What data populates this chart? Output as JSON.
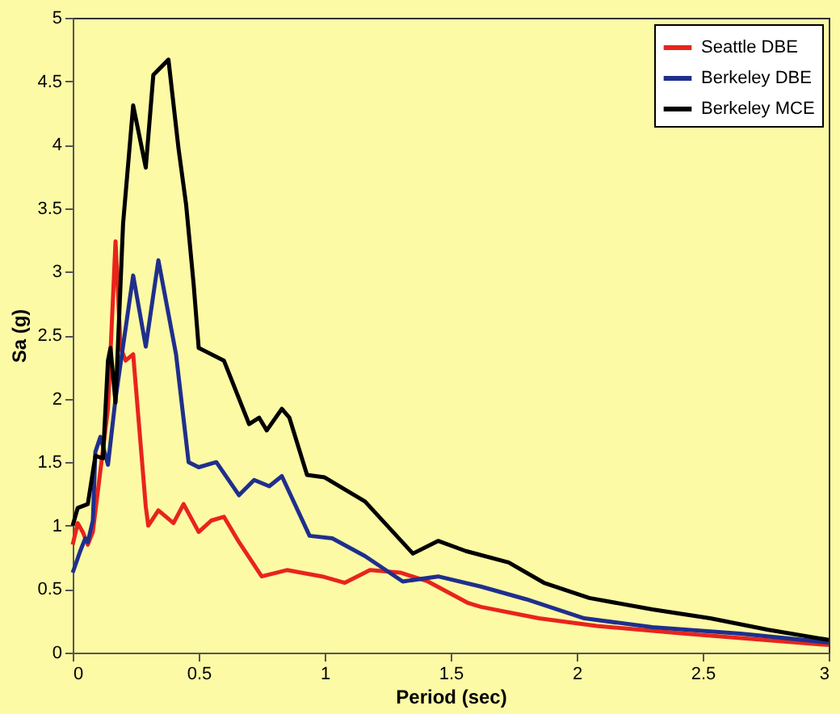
{
  "chart_data": {
    "type": "line",
    "xlabel": "Period (sec)",
    "ylabel": "Sa (g)",
    "xlim": [
      0,
      3
    ],
    "xticks": [
      0,
      0.5,
      1,
      1.5,
      2,
      2.5,
      3
    ],
    "ylim": [
      0,
      5
    ],
    "yticks": [
      0,
      0.5,
      1,
      1.5,
      2,
      2.5,
      3,
      3.5,
      4,
      4.5,
      5
    ],
    "grid": false,
    "legend": "top right",
    "marker": "none",
    "line_style": "solid",
    "series": [
      {
        "name": "Seattle DBE",
        "color": "#e8241c",
        "x": [
          0,
          0.02,
          0.04,
          0.06,
          0.08,
          0.14,
          0.17,
          0.19,
          0.21,
          0.24,
          0.29,
          0.3,
          0.34,
          0.4,
          0.44,
          0.5,
          0.55,
          0.6,
          0.66,
          0.75,
          0.85,
          0.99,
          1.08,
          1.18,
          1.3,
          1.41,
          1.57,
          1.62,
          1.85,
          2.08,
          2.43,
          3
        ],
        "values": [
          0.85,
          1.02,
          0.95,
          0.85,
          0.95,
          1.92,
          3.24,
          2.4,
          2.3,
          2.35,
          1.15,
          1.0,
          1.12,
          1.02,
          1.17,
          0.95,
          1.04,
          1.07,
          0.87,
          0.6,
          0.65,
          0.6,
          0.55,
          0.65,
          0.63,
          0.56,
          0.39,
          0.36,
          0.27,
          0.21,
          0.15,
          0.06
        ]
      },
      {
        "name": "Berkeley DBE",
        "color": "#1f2f8c",
        "x": [
          0,
          0.03,
          0.05,
          0.06,
          0.08,
          0.09,
          0.11,
          0.14,
          0.17,
          0.24,
          0.29,
          0.34,
          0.41,
          0.46,
          0.5,
          0.57,
          0.66,
          0.72,
          0.78,
          0.83,
          0.94,
          1.03,
          1.16,
          1.31,
          1.45,
          1.62,
          1.8,
          2.03,
          2.3,
          2.65,
          3
        ],
        "values": [
          0.63,
          0.8,
          0.9,
          0.87,
          1.04,
          1.58,
          1.7,
          1.48,
          2.0,
          2.97,
          2.41,
          3.09,
          2.35,
          1.5,
          1.46,
          1.5,
          1.24,
          1.36,
          1.31,
          1.39,
          0.92,
          0.9,
          0.76,
          0.56,
          0.6,
          0.52,
          0.42,
          0.27,
          0.2,
          0.15,
          0.08
        ]
      },
      {
        "name": "Berkeley MCE",
        "color": "#000000",
        "x": [
          0,
          0.02,
          0.06,
          0.09,
          0.12,
          0.14,
          0.15,
          0.17,
          0.2,
          0.24,
          0.29,
          0.32,
          0.38,
          0.42,
          0.45,
          0.48,
          0.5,
          0.6,
          0.7,
          0.74,
          0.77,
          0.83,
          0.86,
          0.93,
          1.0,
          1.16,
          1.35,
          1.45,
          1.56,
          1.73,
          1.87,
          2.05,
          2.3,
          2.53,
          2.76,
          3
        ],
        "values": [
          1.0,
          1.14,
          1.17,
          1.55,
          1.53,
          2.3,
          2.4,
          1.97,
          3.38,
          4.31,
          3.82,
          4.55,
          4.67,
          3.97,
          3.53,
          2.9,
          2.4,
          2.3,
          1.8,
          1.85,
          1.75,
          1.92,
          1.85,
          1.4,
          1.38,
          1.19,
          0.78,
          0.88,
          0.8,
          0.71,
          0.55,
          0.43,
          0.34,
          0.27,
          0.18,
          0.1
        ]
      }
    ]
  }
}
